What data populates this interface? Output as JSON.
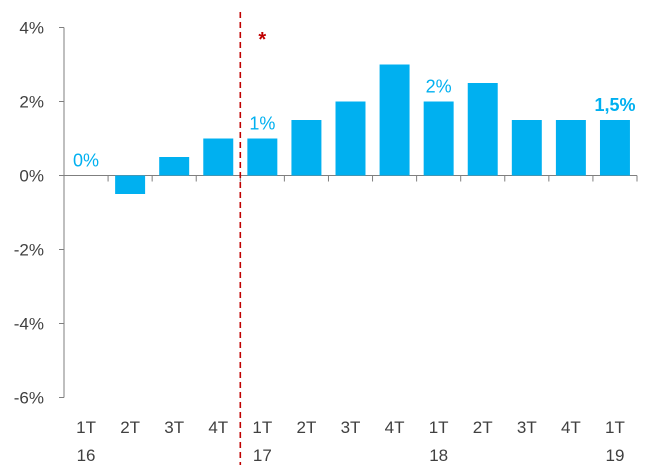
{
  "chart_data": {
    "type": "bar",
    "title": "",
    "xlabel": "",
    "ylabel": "",
    "ylim": [
      -6,
      4
    ],
    "yticks": [
      "4%",
      "2%",
      "0%",
      "-2%",
      "-4%",
      "-6%"
    ],
    "ytick_values": [
      4,
      2,
      0,
      -2,
      -4,
      -6
    ],
    "categories": [
      "1T 16",
      "2T 16",
      "3T 16",
      "4T 16",
      "1T 17",
      "2T 17",
      "3T 17",
      "4T 17",
      "1T 18",
      "2T 18",
      "3T 18",
      "4T 18",
      "1T 19"
    ],
    "quarter_labels": [
      "1T",
      "2T",
      "3T",
      "4T",
      "1T",
      "2T",
      "3T",
      "4T",
      "1T",
      "2T",
      "3T",
      "4T",
      "1T"
    ],
    "year_labels": [
      "16",
      "",
      "",
      "",
      "17",
      "",
      "",
      "",
      "18",
      "",
      "",
      "",
      "19"
    ],
    "values": [
      0,
      -0.5,
      0.5,
      1,
      1,
      1.5,
      2,
      3,
      2,
      2.5,
      1.5,
      1.5,
      1.5
    ],
    "data_labels": [
      "0%",
      "",
      "",
      "",
      "1%",
      "",
      "",
      "",
      "2%",
      "",
      "",
      "",
      "1,5%"
    ],
    "bold_labels": [
      false,
      false,
      false,
      false,
      false,
      false,
      false,
      false,
      false,
      false,
      false,
      false,
      true
    ],
    "grid": false,
    "legend": "none",
    "bar_color": "#00B0F0",
    "label_color": "#00B0F0",
    "annotation": {
      "text": "*",
      "color": "#C00000",
      "divider_after_category": 3,
      "divider_style": "dashed"
    }
  }
}
